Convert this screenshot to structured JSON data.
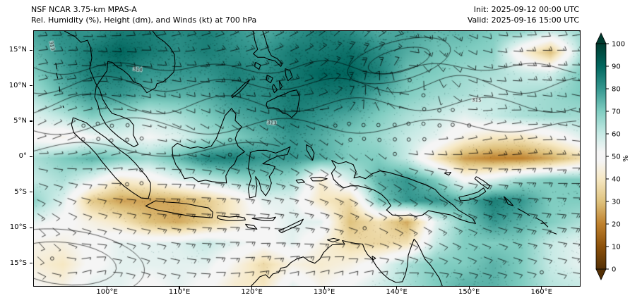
{
  "header": {
    "title_line1": "NSF NCAR 3.75-km MPAS-A",
    "title_line2": "Rel. Humidity (%), Height (dm), and Winds (kt) at 700 hPa",
    "init_label": "Init: 2025-09-12 00:00 UTC",
    "valid_label": "Valid: 2025-09-16 15:00 UTC"
  },
  "chart_data": {
    "type": "heatmap",
    "title": "Rel. Humidity (%), Height (dm), and Winds (kt) at 700 hPa",
    "model": "NSF NCAR 3.75-km MPAS-A",
    "init_time": "2025-09-12 00:00 UTC",
    "valid_time": "2025-09-16 15:00 UTC",
    "level": "700 hPa",
    "field_units": "%",
    "projection": "lat-lon",
    "lon_range": [
      89.8,
      165.2
    ],
    "lat_range": [
      -18.1,
      17.8
    ],
    "grid_on": false,
    "x_ticks": [
      {
        "lon": 100,
        "label": "100°E"
      },
      {
        "lon": 110,
        "label": "110°E"
      },
      {
        "lon": 120,
        "label": "120°E"
      },
      {
        "lon": 130,
        "label": "130°E"
      },
      {
        "lon": 140,
        "label": "140°E"
      },
      {
        "lon": 150,
        "label": "150°E"
      },
      {
        "lon": 160,
        "label": "160°E"
      }
    ],
    "y_ticks": [
      {
        "lat": 15,
        "label": "15°N"
      },
      {
        "lat": 10,
        "label": "10°N"
      },
      {
        "lat": 5,
        "label": "5°N"
      },
      {
        "lat": 0,
        "label": "0°"
      },
      {
        "lat": -5,
        "label": "5°S"
      },
      {
        "lat": -10,
        "label": "10°S"
      },
      {
        "lat": -15,
        "label": "15°S"
      }
    ],
    "colorbar": {
      "label": "%",
      "min": 0,
      "max": 100,
      "ticks": [
        0,
        10,
        20,
        30,
        40,
        50,
        60,
        70,
        80,
        90,
        100
      ],
      "extend": "both",
      "colormap": "BrBG",
      "stops": [
        [
          0,
          "#543005"
        ],
        [
          10,
          "#8c510a"
        ],
        [
          20,
          "#bf812d"
        ],
        [
          30,
          "#dfc27d"
        ],
        [
          40,
          "#f6e8c3"
        ],
        [
          48,
          "#f5f5f5"
        ],
        [
          52,
          "#f5f5f5"
        ],
        [
          60,
          "#c7eae5"
        ],
        [
          70,
          "#80cdc1"
        ],
        [
          80,
          "#35978f"
        ],
        [
          90,
          "#01665e"
        ],
        [
          100,
          "#003c30"
        ]
      ]
    },
    "rh_grid": {
      "units": "%",
      "lons": [
        89.8,
        93.8,
        97.8,
        101.7,
        105.7,
        109.7,
        113.7,
        117.6,
        121.6,
        125.6,
        129.6,
        133.5,
        137.5,
        141.5,
        145.5,
        149.4,
        153.4,
        157.4,
        161.4,
        165.2
      ],
      "lats": [
        17.8,
        14.8,
        11.8,
        8.8,
        5.9,
        2.9,
        -0.1,
        -3.1,
        -6.1,
        -9.1,
        -12.1,
        -15.1,
        -18.1
      ],
      "values": [
        [
          78,
          82,
          80,
          85,
          85,
          82,
          85,
          80,
          76,
          80,
          85,
          82,
          76,
          78,
          74,
          74,
          70,
          68,
          60,
          66
        ],
        [
          74,
          80,
          86,
          90,
          86,
          82,
          85,
          82,
          80,
          86,
          86,
          88,
          82,
          76,
          72,
          70,
          68,
          45,
          30,
          62
        ],
        [
          70,
          78,
          85,
          85,
          80,
          80,
          80,
          85,
          82,
          86,
          90,
          90,
          85,
          72,
          70,
          66,
          64,
          60,
          58,
          70
        ],
        [
          64,
          74,
          80,
          80,
          75,
          75,
          76,
          82,
          82,
          86,
          86,
          85,
          76,
          70,
          66,
          64,
          60,
          64,
          66,
          70
        ],
        [
          56,
          62,
          70,
          66,
          60,
          64,
          70,
          76,
          80,
          85,
          80,
          76,
          70,
          64,
          60,
          55,
          60,
          64,
          66,
          65
        ],
        [
          50,
          46,
          52,
          56,
          52,
          56,
          64,
          70,
          75,
          80,
          76,
          70,
          66,
          60,
          55,
          45,
          40,
          40,
          46,
          55
        ],
        [
          64,
          70,
          75,
          70,
          66,
          74,
          84,
          85,
          80,
          80,
          76,
          70,
          70,
          60,
          40,
          24,
          20,
          20,
          26,
          36
        ],
        [
          60,
          64,
          55,
          42,
          46,
          55,
          60,
          66,
          70,
          66,
          42,
          58,
          75,
          80,
          70,
          50,
          56,
          66,
          70,
          70
        ],
        [
          68,
          56,
          32,
          25,
          25,
          26,
          32,
          42,
          55,
          55,
          40,
          36,
          70,
          80,
          80,
          75,
          85,
          80,
          70,
          70
        ],
        [
          55,
          50,
          45,
          40,
          30,
          26,
          32,
          42,
          50,
          56,
          55,
          30,
          38,
          26,
          55,
          70,
          80,
          75,
          70,
          64
        ],
        [
          46,
          45,
          50,
          55,
          55,
          56,
          60,
          55,
          50,
          55,
          45,
          36,
          35,
          38,
          60,
          70,
          70,
          70,
          60,
          55
        ],
        [
          44,
          40,
          50,
          55,
          55,
          55,
          55,
          46,
          36,
          45,
          42,
          45,
          52,
          64,
          70,
          70,
          75,
          70,
          60,
          55
        ],
        [
          48,
          45,
          55,
          55,
          50,
          55,
          50,
          42,
          40,
          55,
          46,
          52,
          58,
          64,
          70,
          75,
          75,
          70,
          62,
          60
        ]
      ]
    },
    "height_contour_labels_dm": [
      "313",
      "314",
      "315",
      "313"
    ],
    "wind": {
      "units": "kt",
      "symbol": "barbs",
      "barb_spacing_px": 21,
      "full_barb_kt": 10,
      "half_barb_kt": 5,
      "calm_threshold_kt": 4,
      "features": [
        {
          "type": "cyclonic-swirl",
          "lon": 140.5,
          "lat": 14
        },
        {
          "type": "anticyclone",
          "lon": 92.5,
          "lat": -15
        },
        {
          "type": "dry-tongue",
          "lon_range": [
            142,
            165
          ],
          "lat_range": [
            2,
            -2
          ]
        },
        {
          "type": "dry-band",
          "from": [
            96,
            -4
          ],
          "to": [
            126,
            -8
          ]
        },
        {
          "type": "dry-band",
          "from": [
            127,
            -4
          ],
          "to": [
            141,
            -14
          ]
        }
      ]
    }
  }
}
